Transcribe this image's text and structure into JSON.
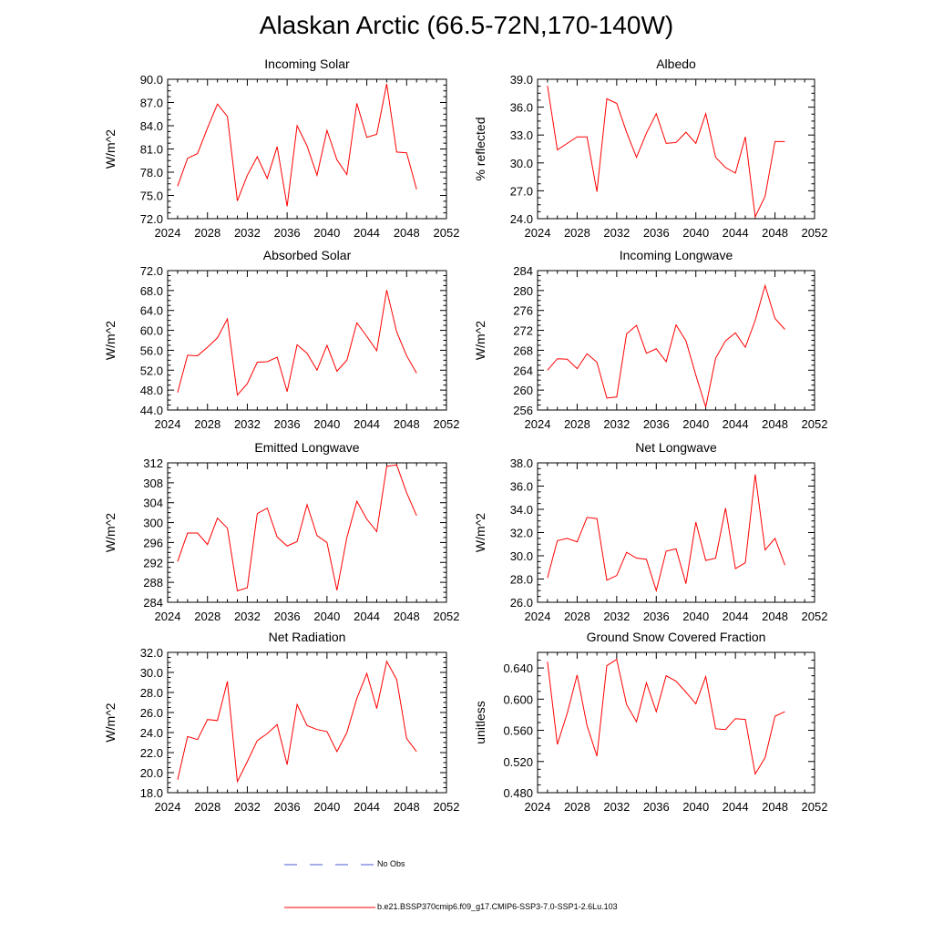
{
  "title": "Alaskan Arctic (66.5-72N,170-140W)",
  "colors": {
    "model": "#ff0000",
    "obs": "#4a5bd6",
    "axis": "#000000"
  },
  "legend": {
    "obs_label": "No Obs",
    "model_label": "b.e21.BSSP370cmip6.f09_g17.CMIP6-SSP3-7.0-SSP1-2.6Lu.103"
  },
  "chart_data": [
    {
      "type": "line",
      "title": "Incoming Solar",
      "ylabel": "W/m^2",
      "xlabel": "",
      "xlim": [
        2024,
        2052
      ],
      "ylim": [
        72.0,
        90.0
      ],
      "xticks": [
        2024,
        2028,
        2032,
        2036,
        2040,
        2044,
        2048,
        2052
      ],
      "yticks": [
        72.0,
        75.0,
        78.0,
        81.0,
        84.0,
        87.0,
        90.0
      ],
      "ydecimals": 1,
      "x": [
        2025,
        2026,
        2027,
        2028,
        2029,
        2030,
        2031,
        2032,
        2033,
        2034,
        2035,
        2036,
        2037,
        2038,
        2039,
        2040,
        2041,
        2042,
        2043,
        2044,
        2045,
        2046,
        2047,
        2048,
        2049
      ],
      "series": [
        {
          "name": "b.e21.BSSP370cmip6.f09_g17.CMIP6-SSP3-7.0-SSP1-2.6Lu.103",
          "values": [
            76.2,
            79.8,
            80.4,
            83.7,
            86.8,
            85.2,
            74.3,
            77.6,
            80.0,
            77.2,
            81.3,
            73.6,
            84.0,
            81.4,
            77.6,
            83.4,
            79.6,
            77.7,
            86.9,
            82.5,
            82.9,
            89.4,
            80.6,
            80.5,
            75.8
          ]
        }
      ]
    },
    {
      "type": "line",
      "title": "Albedo",
      "ylabel": "% reflected",
      "xlabel": "",
      "xlim": [
        2024,
        2052
      ],
      "ylim": [
        24.0,
        39.0
      ],
      "xticks": [
        2024,
        2028,
        2032,
        2036,
        2040,
        2044,
        2048,
        2052
      ],
      "yticks": [
        24.0,
        27.0,
        30.0,
        33.0,
        36.0,
        39.0
      ],
      "ydecimals": 1,
      "x": [
        2025,
        2026,
        2027,
        2028,
        2029,
        2030,
        2031,
        2032,
        2033,
        2034,
        2035,
        2036,
        2037,
        2038,
        2039,
        2040,
        2041,
        2042,
        2043,
        2044,
        2045,
        2046,
        2047,
        2048,
        2049
      ],
      "series": [
        {
          "name": "b.e21.BSSP370cmip6.f09_g17.CMIP6-SSP3-7.0-SSP1-2.6Lu.103",
          "values": [
            38.3,
            31.4,
            32.1,
            32.8,
            32.8,
            26.9,
            36.9,
            36.4,
            33.3,
            30.6,
            33.2,
            35.3,
            32.1,
            32.2,
            33.3,
            32.1,
            35.3,
            30.6,
            29.5,
            28.9,
            32.8,
            24.2,
            26.4,
            32.3,
            32.3
          ]
        }
      ]
    },
    {
      "type": "line",
      "title": "Absorbed Solar",
      "ylabel": "W/m^2",
      "xlabel": "",
      "xlim": [
        2024,
        2052
      ],
      "ylim": [
        44.0,
        72.0
      ],
      "xticks": [
        2024,
        2028,
        2032,
        2036,
        2040,
        2044,
        2048,
        2052
      ],
      "yticks": [
        44.0,
        48.0,
        52.0,
        56.0,
        60.0,
        64.0,
        68.0,
        72.0
      ],
      "ydecimals": 1,
      "x": [
        2025,
        2026,
        2027,
        2028,
        2029,
        2030,
        2031,
        2032,
        2033,
        2034,
        2035,
        2036,
        2037,
        2038,
        2039,
        2040,
        2041,
        2042,
        2043,
        2044,
        2045,
        2046,
        2047,
        2048,
        2049
      ],
      "series": [
        {
          "name": "b.e21.BSSP370cmip6.f09_g17.CMIP6-SSP3-7.0-SSP1-2.6Lu.103",
          "values": [
            47.5,
            55.0,
            54.9,
            56.6,
            58.5,
            62.3,
            47.0,
            49.3,
            53.6,
            53.7,
            54.6,
            47.7,
            57.1,
            55.4,
            52.0,
            57.0,
            51.8,
            54.0,
            61.5,
            58.8,
            55.9,
            68.1,
            59.7,
            54.9,
            51.4
          ]
        }
      ]
    },
    {
      "type": "line",
      "title": "Incoming Longwave",
      "ylabel": "W/m^2",
      "xlabel": "",
      "xlim": [
        2024,
        2052
      ],
      "ylim": [
        256,
        284
      ],
      "xticks": [
        2024,
        2028,
        2032,
        2036,
        2040,
        2044,
        2048,
        2052
      ],
      "yticks": [
        256,
        260,
        264,
        268,
        272,
        276,
        280,
        284
      ],
      "ydecimals": 0,
      "x": [
        2025,
        2026,
        2027,
        2028,
        2029,
        2030,
        2031,
        2032,
        2033,
        2034,
        2035,
        2036,
        2037,
        2038,
        2039,
        2040,
        2041,
        2042,
        2043,
        2044,
        2045,
        2046,
        2047,
        2048,
        2049
      ],
      "series": [
        {
          "name": "b.e21.BSSP370cmip6.f09_g17.CMIP6-SSP3-7.0-SSP1-2.6Lu.103",
          "values": [
            264.0,
            266.3,
            266.2,
            264.3,
            267.3,
            265.6,
            258.4,
            258.6,
            271.3,
            273.0,
            267.4,
            268.3,
            265.7,
            273.1,
            269.9,
            263.0,
            256.6,
            266.4,
            269.9,
            271.5,
            268.6,
            274.0,
            281.0,
            274.4,
            272.2
          ]
        }
      ]
    },
    {
      "type": "line",
      "title": "Emitted Longwave",
      "ylabel": "W/m^2",
      "xlabel": "",
      "xlim": [
        2024,
        2052
      ],
      "ylim": [
        284,
        312
      ],
      "xticks": [
        2024,
        2028,
        2032,
        2036,
        2040,
        2044,
        2048,
        2052
      ],
      "yticks": [
        284,
        288,
        292,
        296,
        300,
        304,
        308,
        312
      ],
      "ydecimals": 0,
      "x": [
        2025,
        2026,
        2027,
        2028,
        2029,
        2030,
        2031,
        2032,
        2033,
        2034,
        2035,
        2036,
        2037,
        2038,
        2039,
        2040,
        2041,
        2042,
        2043,
        2044,
        2045,
        2046,
        2047,
        2048,
        2049
      ],
      "series": [
        {
          "name": "b.e21.BSSP370cmip6.f09_g17.CMIP6-SSP3-7.0-SSP1-2.6Lu.103",
          "values": [
            292.2,
            297.9,
            297.9,
            295.6,
            300.9,
            298.9,
            286.3,
            286.9,
            301.8,
            302.9,
            297.1,
            295.3,
            296.2,
            303.6,
            297.4,
            296.0,
            286.4,
            297.0,
            304.3,
            300.7,
            298.2,
            311.3,
            311.6,
            306.0,
            301.4
          ]
        }
      ]
    },
    {
      "type": "line",
      "title": "Net Longwave",
      "ylabel": "W/m^2",
      "xlabel": "",
      "xlim": [
        2024,
        2052
      ],
      "ylim": [
        26.0,
        38.0
      ],
      "xticks": [
        2024,
        2028,
        2032,
        2036,
        2040,
        2044,
        2048,
        2052
      ],
      "yticks": [
        26.0,
        28.0,
        30.0,
        32.0,
        34.0,
        36.0,
        38.0
      ],
      "ydecimals": 1,
      "x": [
        2025,
        2026,
        2027,
        2028,
        2029,
        2030,
        2031,
        2032,
        2033,
        2034,
        2035,
        2036,
        2037,
        2038,
        2039,
        2040,
        2041,
        2042,
        2043,
        2044,
        2045,
        2046,
        2047,
        2048,
        2049
      ],
      "series": [
        {
          "name": "b.e21.BSSP370cmip6.f09_g17.CMIP6-SSP3-7.0-SSP1-2.6Lu.103",
          "values": [
            28.1,
            31.3,
            31.5,
            31.2,
            33.3,
            33.2,
            27.9,
            28.3,
            30.3,
            29.8,
            29.7,
            27.0,
            30.4,
            30.6,
            27.6,
            32.9,
            29.6,
            29.8,
            34.1,
            28.9,
            29.4,
            37.0,
            30.5,
            31.5,
            29.2
          ]
        }
      ]
    },
    {
      "type": "line",
      "title": "Net Radiation",
      "ylabel": "W/m^2",
      "xlabel": "",
      "xlim": [
        2024,
        2052
      ],
      "ylim": [
        18.0,
        32.0
      ],
      "xticks": [
        2024,
        2028,
        2032,
        2036,
        2040,
        2044,
        2048,
        2052
      ],
      "yticks": [
        18.0,
        20.0,
        22.0,
        24.0,
        26.0,
        28.0,
        30.0,
        32.0
      ],
      "ydecimals": 1,
      "x": [
        2025,
        2026,
        2027,
        2028,
        2029,
        2030,
        2031,
        2032,
        2033,
        2034,
        2035,
        2036,
        2037,
        2038,
        2039,
        2040,
        2041,
        2042,
        2043,
        2044,
        2045,
        2046,
        2047,
        2048,
        2049
      ],
      "series": [
        {
          "name": "b.e21.BSSP370cmip6.f09_g17.CMIP6-SSP3-7.0-SSP1-2.6Lu.103",
          "values": [
            19.3,
            23.6,
            23.3,
            25.3,
            25.2,
            29.1,
            19.1,
            21.1,
            23.2,
            23.9,
            24.8,
            20.8,
            26.8,
            24.7,
            24.3,
            24.1,
            22.1,
            24.0,
            27.4,
            29.9,
            26.4,
            31.1,
            29.3,
            23.4,
            22.1
          ]
        }
      ]
    },
    {
      "type": "line",
      "title": "Ground Snow Covered Fraction",
      "ylabel": "unitless",
      "xlabel": "",
      "xlim": [
        2024,
        2052
      ],
      "ylim": [
        0.48,
        0.66
      ],
      "xticks": [
        2024,
        2028,
        2032,
        2036,
        2040,
        2044,
        2048,
        2052
      ],
      "yticks": [
        0.48,
        0.52,
        0.56,
        0.6,
        0.64
      ],
      "ydecimals": 3,
      "x": [
        2025,
        2026,
        2027,
        2028,
        2029,
        2030,
        2031,
        2032,
        2033,
        2034,
        2035,
        2036,
        2037,
        2038,
        2039,
        2040,
        2041,
        2042,
        2043,
        2044,
        2045,
        2046,
        2047,
        2048,
        2049
      ],
      "series": [
        {
          "name": "b.e21.BSSP370cmip6.f09_g17.CMIP6-SSP3-7.0-SSP1-2.6Lu.103",
          "values": [
            0.648,
            0.542,
            0.582,
            0.631,
            0.566,
            0.527,
            0.643,
            0.651,
            0.593,
            0.571,
            0.621,
            0.584,
            0.63,
            0.623,
            0.609,
            0.594,
            0.629,
            0.562,
            0.561,
            0.575,
            0.574,
            0.504,
            0.525,
            0.578,
            0.584
          ]
        }
      ]
    }
  ]
}
